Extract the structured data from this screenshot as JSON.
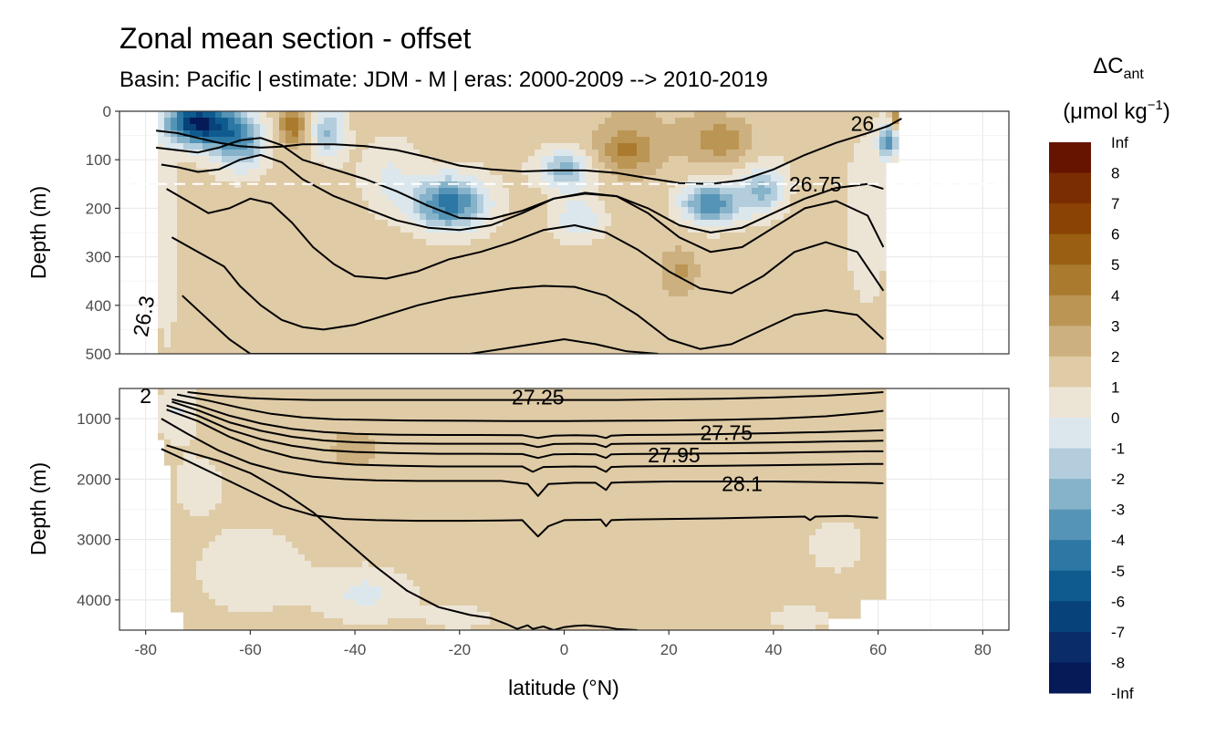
{
  "title": "Zonal mean section - offset",
  "subtitle": "Basin: Pacific | estimate: JDM - M | eras: 2000-2009 --> 2010-2019",
  "chart_data": {
    "type": "heatmap",
    "title": "Zonal mean section - offset",
    "subtitle": "Basin: Pacific | estimate: JDM - M | eras: 2000-2009 --> 2010-2019",
    "xlabel": "latitude (°N)",
    "xlim": [
      -85,
      85
    ],
    "x_ticks": [
      "-80",
      "-60",
      "-40",
      "-20",
      "0",
      "20",
      "40",
      "60",
      "80"
    ],
    "panels": [
      {
        "name": "upper",
        "ylabel": "Depth (m)",
        "ylim": [
          500,
          0
        ],
        "y_ticks": [
          "0",
          "100",
          "200",
          "300",
          "400",
          "500"
        ],
        "reference_line_depth": 150,
        "contour_labels": [
          {
            "text": "26",
            "lat": 57,
            "depth": 25
          },
          {
            "text": "26.75",
            "lat": 48,
            "depth": 150
          },
          {
            "text": "26.3",
            "lat": -79,
            "depth": 410
          }
        ],
        "isopycnals": [
          {
            "lat": [
              -78,
              -74,
              -70,
              -66,
              -62,
              -58,
              -54,
              -50,
              -44,
              -38,
              -32,
              -26,
              -20,
              -14,
              -8,
              -2,
              4,
              10,
              16,
              22,
              28,
              34,
              40,
              46,
              52,
              58,
              62,
              64.5
            ],
            "depth": [
              40,
              45,
              55,
              65,
              72,
              75,
              73,
              68,
              68,
              72,
              80,
              95,
              112,
              120,
              124,
              122,
              122,
              127,
              138,
              148,
              150,
              142,
              120,
              90,
              65,
              45,
              30,
              15
            ]
          },
          {
            "lat": [
              -78,
              -74,
              -70,
              -66,
              -62,
              -58,
              -54,
              -50,
              -44,
              -38,
              -32,
              -26,
              -20,
              -14,
              -8,
              -2,
              4,
              10,
              16,
              22,
              28,
              34,
              40,
              46,
              52,
              58,
              61
            ],
            "depth": [
              75,
              80,
              85,
              75,
              60,
              55,
              70,
              100,
              120,
              140,
              165,
              195,
              220,
              222,
              205,
              180,
              170,
              175,
              200,
              235,
              250,
              240,
              210,
              180,
              158,
              150,
              160
            ]
          },
          {
            "lat": [
              -77,
              -74,
              -70,
              -66,
              -62,
              -58,
              -54,
              -50,
              -44,
              -38,
              -32,
              -26,
              -20,
              -14,
              -8,
              -2,
              4,
              10,
              16,
              22,
              28,
              34,
              40,
              46,
              52,
              58,
              61
            ],
            "depth": [
              110,
              115,
              125,
              120,
              100,
              90,
              105,
              140,
              175,
              200,
              225,
              240,
              245,
              235,
              210,
              180,
              168,
              175,
              210,
              260,
              290,
              280,
              240,
              200,
              185,
              215,
              280
            ]
          },
          {
            "lat": [
              -76,
              -72,
              -68,
              -64,
              -60,
              -56,
              -52,
              -48,
              -44,
              -40,
              -34,
              -28,
              -22,
              -16,
              -10,
              -4,
              2,
              8,
              14,
              20,
              26,
              32,
              38,
              44,
              50,
              56,
              61
            ],
            "depth": [
              160,
              185,
              210,
              200,
              180,
              190,
              230,
              280,
              315,
              340,
              345,
              330,
              305,
              290,
              270,
              245,
              235,
              250,
              285,
              330,
              365,
              375,
              340,
              290,
              270,
              290,
              370
            ]
          },
          {
            "lat": [
              -75,
              -70,
              -65,
              -62,
              -58,
              -54,
              -50,
              -46,
              -40,
              -34,
              -28,
              -22,
              -16,
              -10,
              -4,
              2,
              8,
              14,
              20,
              26,
              32,
              38,
              44,
              50,
              56,
              61
            ],
            "depth": [
              260,
              290,
              320,
              360,
              400,
              430,
              445,
              450,
              440,
              420,
              400,
              385,
              375,
              365,
              360,
              362,
              380,
              420,
              470,
              490,
              480,
              450,
              420,
              410,
              420,
              470
            ]
          },
          {
            "lat": [
              -73,
              -68,
              -64,
              -60,
              -58,
              -56,
              -54,
              -52,
              -50,
              -48,
              -46,
              -42,
              -36,
              -30,
              -24,
              -18,
              -12,
              -6,
              0,
              6,
              12,
              18
            ],
            "depth": [
              380,
              430,
              470,
              500,
              500,
              500,
              500,
              500,
              500,
              500,
              500,
              500,
              500,
              500,
              500,
              500,
              490,
              480,
              470,
              480,
              495,
              500
            ]
          }
        ]
      },
      {
        "name": "lower",
        "ylabel": "Depth (m)",
        "ylim": [
          4500,
          500
        ],
        "y_ticks": [
          "1000",
          "2000",
          "3000",
          "4000"
        ],
        "contour_labels": [
          {
            "text": "27.25",
            "lat": -5,
            "depth": 640
          },
          {
            "text": "27.75",
            "lat": 31,
            "depth": 1230
          },
          {
            "text": "27.95",
            "lat": 21,
            "depth": 1600
          },
          {
            "text": "28.1",
            "lat": 34,
            "depth": 2080
          },
          {
            "text": "2",
            "lat": -80,
            "depth": 620
          }
        ],
        "isopycnals": [
          {
            "lat": [
              -72,
              -66,
              -60,
              -54,
              -48,
              -40,
              -30,
              -20,
              -10,
              0,
              10,
              20,
              30,
              40,
              50,
              58,
              61
            ],
            "depth": [
              560,
              620,
              660,
              680,
              690,
              690,
              690,
              690,
              690,
              690,
              690,
              680,
              670,
              650,
              620,
              580,
              560
            ]
          },
          {
            "lat": [
              -74,
              -68,
              -62,
              -56,
              -50,
              -44,
              -38,
              -30,
              -20,
              -10,
              0,
              10,
              20,
              30,
              40,
              50,
              58,
              61
            ],
            "depth": [
              600,
              700,
              820,
              920,
              980,
              1010,
              1020,
              1030,
              1035,
              1040,
              1040,
              1035,
              1030,
              1020,
              1000,
              960,
              900,
              870
            ]
          },
          {
            "lat": [
              -75,
              -70,
              -64,
              -58,
              -52,
              -46,
              -40,
              -32,
              -24,
              -16,
              -8,
              -5,
              -2,
              2,
              6,
              8,
              9,
              12,
              20,
              30,
              40,
              50,
              58,
              61
            ],
            "depth": [
              680,
              780,
              950,
              1080,
              1170,
              1220,
              1250,
              1265,
              1270,
              1270,
              1275,
              1320,
              1280,
              1275,
              1280,
              1320,
              1280,
              1270,
              1265,
              1255,
              1240,
              1220,
              1200,
              1190
            ]
          },
          {
            "lat": [
              -75,
              -70,
              -64,
              -58,
              -52,
              -46,
              -40,
              -32,
              -24,
              -16,
              -8,
              -5,
              -2,
              2,
              6,
              8,
              9,
              12,
              20,
              30,
              40,
              50,
              58,
              61
            ],
            "depth": [
              720,
              860,
              1060,
              1200,
              1300,
              1360,
              1390,
              1410,
              1415,
              1415,
              1415,
              1470,
              1420,
              1415,
              1420,
              1470,
              1420,
              1415,
              1410,
              1405,
              1395,
              1380,
              1370,
              1365
            ]
          },
          {
            "lat": [
              -76,
              -70,
              -64,
              -58,
              -52,
              -46,
              -40,
              -32,
              -24,
              -16,
              -8,
              -5,
              -2,
              2,
              6,
              8,
              9,
              12,
              20,
              30,
              40,
              50,
              58,
              61
            ],
            "depth": [
              780,
              950,
              1180,
              1340,
              1450,
              1520,
              1550,
              1570,
              1580,
              1580,
              1585,
              1650,
              1590,
              1585,
              1590,
              1650,
              1590,
              1585,
              1580,
              1575,
              1565,
              1550,
              1540,
              1540
            ]
          },
          {
            "lat": [
              -76,
              -70,
              -64,
              -58,
              -52,
              -46,
              -40,
              -32,
              -24,
              -16,
              -8,
              -6,
              -4,
              2,
              6,
              8,
              9,
              12,
              20,
              30,
              40,
              50,
              58,
              61
            ],
            "depth": [
              850,
              1040,
              1300,
              1500,
              1640,
              1720,
              1760,
              1780,
              1790,
              1790,
              1790,
              1880,
              1800,
              1790,
              1795,
              1880,
              1800,
              1790,
              1785,
              1780,
              1770,
              1760,
              1750,
              1750
            ]
          },
          {
            "lat": [
              -77,
              -72,
              -66,
              -60,
              -54,
              -48,
              -42,
              -36,
              -28,
              -20,
              -12,
              -7,
              -5,
              -3,
              2,
              6,
              8,
              9,
              12,
              20,
              30,
              40,
              50,
              58,
              61
            ],
            "depth": [
              1000,
              1250,
              1530,
              1740,
              1880,
              1960,
              2000,
              2020,
              2030,
              2030,
              2030,
              2080,
              2280,
              2080,
              2060,
              2060,
              2180,
              2060,
              2050,
              2040,
              2040,
              2040,
              2050,
              2060,
              2070
            ]
          },
          {
            "lat": [
              -77,
              -72,
              -66,
              -60,
              -54,
              -48,
              -42,
              -36,
              -28,
              -20,
              -12,
              -8,
              -5,
              -3,
              0,
              4,
              7,
              8,
              9,
              12,
              20,
              30,
              40,
              46,
              47,
              48,
              54,
              60
            ],
            "depth": [
              1500,
              1700,
              1950,
              2200,
              2450,
              2600,
              2660,
              2680,
              2690,
              2690,
              2685,
              2680,
              2950,
              2780,
              2680,
              2675,
              2670,
              2780,
              2680,
              2670,
              2660,
              2650,
              2630,
              2620,
              2680,
              2620,
              2610,
              2640
            ]
          },
          {
            "lat": [
              -76,
              -72,
              -66,
              -60,
              -54,
              -48,
              -42,
              -36,
              -30,
              -24,
              -18,
              -14,
              -11,
              -9,
              -7,
              -6,
              -4,
              -2,
              0,
              2,
              4,
              8,
              10,
              14
            ],
            "depth": [
              1440,
              1550,
              1700,
              1900,
              2200,
              2550,
              3000,
              3450,
              3850,
              4120,
              4250,
              4300,
              4400,
              4480,
              4420,
              4480,
              4440,
              4500,
              4450,
              4430,
              4420,
              4450,
              4480,
              4500
            ]
          }
        ]
      }
    ],
    "legend": {
      "title": "ΔCant",
      "title_main": "ΔC",
      "title_sub": "ant",
      "units": "(μmol kg⁻¹)",
      "units_main": "(μmol kg",
      "units_sup": "−1",
      "units_close": ")",
      "labels": [
        "Inf",
        "8",
        "7",
        "6",
        "5",
        "4",
        "3",
        "2",
        "1",
        "0",
        "-1",
        "-2",
        "-3",
        "-4",
        "-5",
        "-6",
        "-7",
        "-8",
        "-Inf"
      ],
      "colors": [
        "#661400",
        "#7a2d02",
        "#8b4305",
        "#9a5f12",
        "#aa7b2e",
        "#bb9554",
        "#cdb07f",
        "#dfcba6",
        "#ece5d6",
        "#dbe7ec",
        "#b3cddd",
        "#86b2ca",
        "#5594b6",
        "#2c77a3",
        "#0f5b90",
        "#07427a",
        "#0a2d69",
        "#051a56"
      ]
    }
  }
}
